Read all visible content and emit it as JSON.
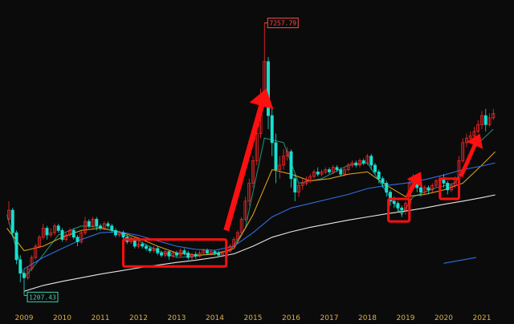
{
  "colors": {
    "background": "#0b0b0b",
    "up": "#ff2a2a",
    "down": "#19e0d0",
    "ma_fast": "#1e8a70",
    "ma_mid": "#d99a1c",
    "ma_slow": "#2f6fe0",
    "ma_long": "#e6e6e6",
    "annotation": "#ff1010",
    "axis_label": "#d8b04a",
    "high_callout": "#ff4a4a",
    "low_callout": "#3fd0b0"
  },
  "chart_data": {
    "type": "candlestick",
    "title": "",
    "xlabel": "",
    "ylabel": "",
    "x_tick_labels": [
      "2009",
      "2010",
      "2011",
      "2012",
      "2013",
      "2014",
      "2015",
      "2016",
      "2017",
      "2018",
      "2019",
      "2020",
      "2021"
    ],
    "ylim": [
      1000,
      7500
    ],
    "y_scale": "linear",
    "grid": false,
    "legend": "none",
    "annotations": {
      "high_label": "7257.79",
      "high_value": 7257.79,
      "low_label": "1207.43",
      "low_value": 1207.43
    },
    "moving_averages": [
      {
        "key": "ma_fast",
        "points": [
          [
            2008.55,
            3000
          ],
          [
            2009.0,
            1600
          ],
          [
            2009.4,
            2000
          ],
          [
            2009.9,
            2550
          ],
          [
            2010.5,
            2750
          ],
          [
            2011.0,
            2720
          ],
          [
            2011.5,
            2600
          ],
          [
            2012.0,
            2420
          ],
          [
            2012.5,
            2200
          ],
          [
            2013.0,
            2050
          ],
          [
            2013.5,
            2080
          ],
          [
            2014.0,
            2150
          ],
          [
            2014.4,
            2200
          ],
          [
            2014.8,
            2700
          ],
          [
            2015.3,
            4700
          ],
          [
            2015.8,
            4600
          ],
          [
            2016.2,
            3700
          ],
          [
            2016.8,
            3800
          ],
          [
            2017.5,
            4100
          ],
          [
            2018.0,
            4150
          ],
          [
            2018.5,
            3500
          ],
          [
            2018.9,
            3000
          ],
          [
            2019.2,
            3400
          ],
          [
            2019.8,
            3600
          ],
          [
            2020.3,
            3700
          ],
          [
            2020.8,
            4500
          ],
          [
            2021.3,
            4900
          ]
        ]
      },
      {
        "key": "ma_mid",
        "points": [
          [
            2008.55,
            2700
          ],
          [
            2009.0,
            2200
          ],
          [
            2009.5,
            2300
          ],
          [
            2010.0,
            2500
          ],
          [
            2010.5,
            2650
          ],
          [
            2011.0,
            2700
          ],
          [
            2011.5,
            2620
          ],
          [
            2012.0,
            2480
          ],
          [
            2012.5,
            2300
          ],
          [
            2013.0,
            2150
          ],
          [
            2013.5,
            2100
          ],
          [
            2014.0,
            2120
          ],
          [
            2014.5,
            2250
          ],
          [
            2015.0,
            3000
          ],
          [
            2015.5,
            4000
          ],
          [
            2016.0,
            3900
          ],
          [
            2016.5,
            3750
          ],
          [
            2017.0,
            3800
          ],
          [
            2017.5,
            3900
          ],
          [
            2018.0,
            3950
          ],
          [
            2018.5,
            3650
          ],
          [
            2019.0,
            3400
          ],
          [
            2019.5,
            3450
          ],
          [
            2020.0,
            3550
          ],
          [
            2020.5,
            3700
          ],
          [
            2021.0,
            4100
          ],
          [
            2021.35,
            4400
          ]
        ]
      },
      {
        "key": "ma_slow",
        "points": [
          [
            2009.0,
            1800
          ],
          [
            2009.5,
            2050
          ],
          [
            2010.0,
            2250
          ],
          [
            2010.5,
            2450
          ],
          [
            2011.0,
            2600
          ],
          [
            2011.5,
            2620
          ],
          [
            2012.0,
            2540
          ],
          [
            2012.5,
            2420
          ],
          [
            2013.0,
            2300
          ],
          [
            2013.5,
            2230
          ],
          [
            2014.0,
            2210
          ],
          [
            2014.5,
            2300
          ],
          [
            2015.0,
            2600
          ],
          [
            2015.5,
            2950
          ],
          [
            2016.0,
            3150
          ],
          [
            2016.5,
            3250
          ],
          [
            2017.0,
            3350
          ],
          [
            2017.5,
            3450
          ],
          [
            2018.0,
            3580
          ],
          [
            2018.5,
            3650
          ],
          [
            2019.0,
            3700
          ],
          [
            2019.5,
            3780
          ],
          [
            2020.0,
            3880
          ],
          [
            2020.5,
            4000
          ],
          [
            2021.0,
            4080
          ],
          [
            2021.35,
            4150
          ]
        ]
      },
      {
        "key": "ma_long",
        "points": [
          [
            2009.0,
            1300
          ],
          [
            2009.5,
            1430
          ],
          [
            2010.0,
            1520
          ],
          [
            2010.5,
            1600
          ],
          [
            2011.0,
            1680
          ],
          [
            2011.5,
            1750
          ],
          [
            2012.0,
            1820
          ],
          [
            2012.5,
            1880
          ],
          [
            2013.0,
            1940
          ],
          [
            2013.5,
            1990
          ],
          [
            2014.0,
            2050
          ],
          [
            2014.5,
            2130
          ],
          [
            2015.0,
            2300
          ],
          [
            2015.5,
            2500
          ],
          [
            2016.0,
            2620
          ],
          [
            2016.5,
            2720
          ],
          [
            2017.0,
            2800
          ],
          [
            2017.5,
            2880
          ],
          [
            2018.0,
            2950
          ],
          [
            2018.5,
            3020
          ],
          [
            2019.0,
            3080
          ],
          [
            2019.5,
            3150
          ],
          [
            2020.0,
            3230
          ],
          [
            2020.5,
            3300
          ],
          [
            2021.0,
            3380
          ],
          [
            2021.35,
            3440
          ]
        ]
      }
    ],
    "stray_segment": [
      [
        2020.0,
        1920
      ],
      [
        2020.85,
        2050
      ]
    ],
    "candles_monthly": [
      [
        2008.6,
        2900,
        3100,
        3300,
        2800
      ],
      [
        2008.7,
        3100,
        2600,
        3150,
        2500
      ],
      [
        2008.8,
        2600,
        2000,
        2650,
        1900
      ],
      [
        2008.9,
        2000,
        1700,
        2100,
        1500
      ],
      [
        2009.0,
        1700,
        1600,
        1800,
        1207.43
      ],
      [
        2009.1,
        1600,
        1800,
        1850,
        1550
      ],
      [
        2009.2,
        1800,
        2050,
        2100,
        1750
      ],
      [
        2009.3,
        2050,
        2300,
        2350,
        2000
      ],
      [
        2009.4,
        2300,
        2500,
        2550,
        2250
      ],
      [
        2009.5,
        2500,
        2700,
        2800,
        2450
      ],
      [
        2009.6,
        2700,
        2550,
        2750,
        2450
      ],
      [
        2009.7,
        2550,
        2600,
        2700,
        2500
      ],
      [
        2009.8,
        2600,
        2750,
        2800,
        2550
      ],
      [
        2009.9,
        2750,
        2650,
        2800,
        2600
      ],
      [
        2010.0,
        2650,
        2450,
        2700,
        2400
      ],
      [
        2010.1,
        2450,
        2550,
        2600,
        2400
      ],
      [
        2010.2,
        2550,
        2650,
        2700,
        2500
      ],
      [
        2010.3,
        2650,
        2500,
        2700,
        2450
      ],
      [
        2010.4,
        2500,
        2400,
        2550,
        2300
      ],
      [
        2010.5,
        2400,
        2600,
        2650,
        2350
      ],
      [
        2010.6,
        2600,
        2850,
        2950,
        2550
      ],
      [
        2010.7,
        2850,
        2750,
        2900,
        2700
      ],
      [
        2010.8,
        2750,
        2900,
        2950,
        2700
      ],
      [
        2010.9,
        2900,
        2750,
        2950,
        2650
      ],
      [
        2011.0,
        2750,
        2700,
        2800,
        2650
      ],
      [
        2011.1,
        2700,
        2800,
        2850,
        2650
      ],
      [
        2011.2,
        2800,
        2750,
        2850,
        2700
      ],
      [
        2011.3,
        2750,
        2650,
        2800,
        2600
      ],
      [
        2011.4,
        2650,
        2550,
        2700,
        2500
      ],
      [
        2011.5,
        2550,
        2600,
        2650,
        2500
      ],
      [
        2011.6,
        2600,
        2500,
        2650,
        2450
      ],
      [
        2011.7,
        2500,
        2400,
        2550,
        2350
      ],
      [
        2011.8,
        2400,
        2450,
        2500,
        2350
      ],
      [
        2011.9,
        2450,
        2300,
        2500,
        2250
      ],
      [
        2012.0,
        2300,
        2350,
        2400,
        2250
      ],
      [
        2012.1,
        2350,
        2300,
        2400,
        2250
      ],
      [
        2012.2,
        2300,
        2250,
        2350,
        2200
      ],
      [
        2012.3,
        2250,
        2200,
        2300,
        2150
      ],
      [
        2012.4,
        2200,
        2250,
        2300,
        2150
      ],
      [
        2012.5,
        2250,
        2150,
        2300,
        2100
      ],
      [
        2012.6,
        2150,
        2100,
        2200,
        2050
      ],
      [
        2012.7,
        2100,
        2180,
        2220,
        2050
      ],
      [
        2012.8,
        2180,
        2080,
        2200,
        2000
      ],
      [
        2012.9,
        2080,
        2150,
        2180,
        2050
      ],
      [
        2013.0,
        2150,
        2100,
        2200,
        2050
      ],
      [
        2013.1,
        2100,
        2200,
        2250,
        2050
      ],
      [
        2013.2,
        2200,
        2150,
        2250,
        2100
      ],
      [
        2013.3,
        2150,
        2050,
        2200,
        2000
      ],
      [
        2013.4,
        2050,
        2120,
        2150,
        2000
      ],
      [
        2013.5,
        2120,
        2080,
        2180,
        2020
      ],
      [
        2013.6,
        2080,
        2150,
        2200,
        2050
      ],
      [
        2013.7,
        2150,
        2200,
        2250,
        2100
      ],
      [
        2013.8,
        2200,
        2150,
        2250,
        2100
      ],
      [
        2013.9,
        2150,
        2180,
        2220,
        2100
      ],
      [
        2014.0,
        2180,
        2150,
        2220,
        2100
      ],
      [
        2014.1,
        2150,
        2100,
        2200,
        2050
      ],
      [
        2014.2,
        2100,
        2150,
        2200,
        2050
      ],
      [
        2014.3,
        2150,
        2200,
        2250,
        2100
      ],
      [
        2014.4,
        2200,
        2300,
        2350,
        2150
      ],
      [
        2014.5,
        2300,
        2450,
        2500,
        2250
      ],
      [
        2014.6,
        2450,
        2600,
        2650,
        2400
      ],
      [
        2014.7,
        2600,
        2900,
        2950,
        2550
      ],
      [
        2014.8,
        2900,
        3300,
        3400,
        2850
      ],
      [
        2014.9,
        3300,
        3700,
        3800,
        3200
      ],
      [
        2015.0,
        3700,
        4200,
        4300,
        3600
      ],
      [
        2015.1,
        4200,
        4800,
        5000,
        4100
      ],
      [
        2015.2,
        4800,
        5600,
        5800,
        4700
      ],
      [
        2015.3,
        5600,
        6400,
        7257.79,
        5500
      ],
      [
        2015.4,
        6400,
        5200,
        6500,
        4900
      ],
      [
        2015.5,
        5200,
        4600,
        5400,
        4300
      ],
      [
        2015.6,
        4600,
        4000,
        4800,
        3700
      ],
      [
        2015.7,
        4000,
        4100,
        4300,
        3800
      ],
      [
        2015.8,
        4100,
        4300,
        4450,
        4000
      ],
      [
        2015.9,
        4300,
        4400,
        4500,
        4200
      ],
      [
        2016.0,
        4400,
        3800,
        4450,
        3600
      ],
      [
        2016.1,
        3800,
        3500,
        3900,
        3300
      ],
      [
        2016.2,
        3500,
        3650,
        3700,
        3400
      ],
      [
        2016.3,
        3650,
        3700,
        3800,
        3550
      ],
      [
        2016.4,
        3700,
        3750,
        3850,
        3650
      ],
      [
        2016.5,
        3750,
        3850,
        3900,
        3700
      ],
      [
        2016.6,
        3850,
        3950,
        4000,
        3800
      ],
      [
        2016.7,
        3950,
        3900,
        4050,
        3850
      ],
      [
        2016.8,
        3900,
        3950,
        4000,
        3850
      ],
      [
        2016.9,
        3950,
        4000,
        4050,
        3900
      ],
      [
        2017.0,
        4000,
        3950,
        4050,
        3900
      ],
      [
        2017.1,
        3950,
        4050,
        4100,
        3900
      ],
      [
        2017.2,
        4050,
        4000,
        4100,
        3950
      ],
      [
        2017.3,
        4000,
        3900,
        4050,
        3850
      ],
      [
        2017.4,
        3900,
        4000,
        4050,
        3850
      ],
      [
        2017.5,
        4000,
        4100,
        4150,
        3950
      ],
      [
        2017.6,
        4100,
        4150,
        4200,
        4050
      ],
      [
        2017.7,
        4150,
        4100,
        4200,
        4050
      ],
      [
        2017.8,
        4100,
        4200,
        4250,
        4050
      ],
      [
        2017.9,
        4200,
        4150,
        4250,
        4100
      ],
      [
        2018.0,
        4150,
        4300,
        4350,
        4100
      ],
      [
        2018.1,
        4300,
        4100,
        4350,
        4000
      ],
      [
        2018.2,
        4100,
        3950,
        4150,
        3900
      ],
      [
        2018.3,
        3950,
        3800,
        4000,
        3700
      ],
      [
        2018.4,
        3800,
        3700,
        3850,
        3600
      ],
      [
        2018.5,
        3700,
        3500,
        3750,
        3400
      ],
      [
        2018.6,
        3500,
        3300,
        3550,
        3200
      ],
      [
        2018.7,
        3300,
        3250,
        3400,
        3150
      ],
      [
        2018.8,
        3250,
        3150,
        3300,
        3050
      ],
      [
        2018.9,
        3150,
        3100,
        3200,
        2950
      ],
      [
        2019.0,
        3100,
        3250,
        3300,
        3000
      ],
      [
        2019.1,
        3250,
        3700,
        3800,
        3200
      ],
      [
        2019.2,
        3700,
        3800,
        3900,
        3650
      ],
      [
        2019.3,
        3800,
        3600,
        3850,
        3500
      ],
      [
        2019.4,
        3600,
        3500,
        3650,
        3400
      ],
      [
        2019.5,
        3500,
        3600,
        3650,
        3450
      ],
      [
        2019.6,
        3600,
        3550,
        3650,
        3450
      ],
      [
        2019.7,
        3550,
        3650,
        3700,
        3500
      ],
      [
        2019.8,
        3650,
        3750,
        3800,
        3600
      ],
      [
        2019.9,
        3750,
        3800,
        3850,
        3700
      ],
      [
        2020.0,
        3800,
        3700,
        3900,
        3600
      ],
      [
        2020.1,
        3700,
        3550,
        3750,
        3450
      ],
      [
        2020.2,
        3550,
        3650,
        3700,
        3500
      ],
      [
        2020.3,
        3650,
        3800,
        3850,
        3600
      ],
      [
        2020.4,
        3800,
        4200,
        4300,
        3750
      ],
      [
        2020.5,
        4200,
        4600,
        4700,
        4150
      ],
      [
        2020.6,
        4600,
        4700,
        4800,
        4500
      ],
      [
        2020.7,
        4700,
        4750,
        4850,
        4600
      ],
      [
        2020.8,
        4750,
        4850,
        4950,
        4700
      ],
      [
        2020.9,
        4850,
        5000,
        5100,
        4800
      ],
      [
        2021.0,
        5000,
        5200,
        5300,
        4900
      ],
      [
        2021.1,
        5200,
        5000,
        5350,
        4850
      ],
      [
        2021.2,
        5000,
        5150,
        5250,
        4950
      ],
      [
        2021.3,
        5150,
        5250,
        5350,
        5100
      ]
    ]
  }
}
